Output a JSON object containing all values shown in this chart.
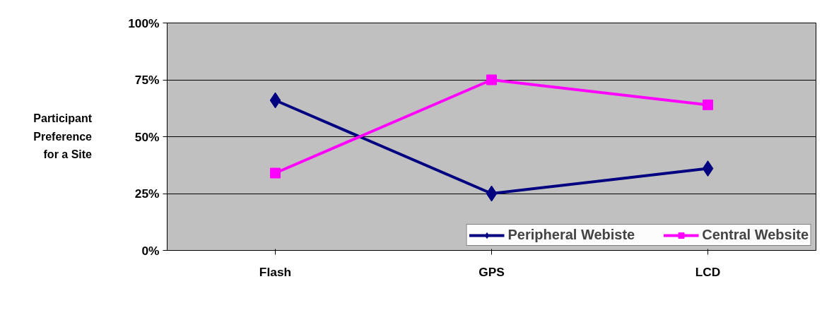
{
  "chart_data": {
    "type": "line",
    "ylabel": "Participant Preference for a Site",
    "categories": [
      "Flash",
      "GPS",
      "LCD"
    ],
    "series": [
      {
        "name": "Peripheral Webiste",
        "color": "#000080",
        "marker": "diamond",
        "values": [
          66,
          25,
          36
        ]
      },
      {
        "name": "Central Website",
        "color": "#ff00ff",
        "marker": "square",
        "values": [
          34,
          75,
          64
        ]
      }
    ],
    "ylim": [
      0,
      100
    ],
    "yticks": [
      {
        "value": 0,
        "label": "0%"
      },
      {
        "value": 25,
        "label": "25%"
      },
      {
        "value": 50,
        "label": "50%"
      },
      {
        "value": 75,
        "label": "75%"
      },
      {
        "value": 100,
        "label": "100%"
      }
    ],
    "grid": "y",
    "legend": "bottom right",
    "line_style": "solid"
  }
}
